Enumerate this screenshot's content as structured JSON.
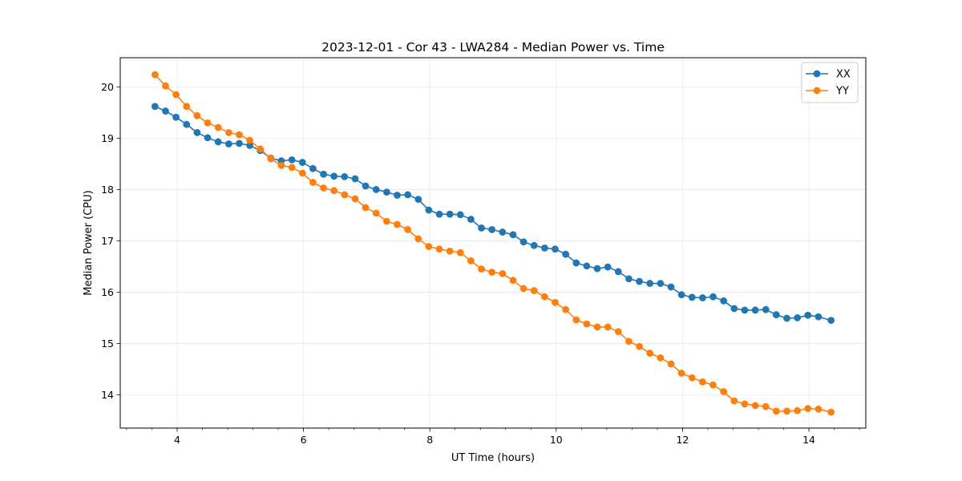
{
  "chart_data": {
    "type": "line",
    "title": "2023-12-01 - Cor 43 - LWA284 - Median Power vs. Time",
    "xlabel": "UT Time (hours)",
    "ylabel": "Median Power (CPU)",
    "xlim": [
      3.1,
      14.9
    ],
    "ylim": [
      13.35,
      20.57
    ],
    "x_ticks": [
      4,
      6,
      8,
      10,
      12,
      14
    ],
    "x_tick_labels": [
      "4",
      "6",
      "8",
      "10",
      "12",
      "14"
    ],
    "x_minor_step": 0.4,
    "y_ticks": [
      14,
      15,
      16,
      17,
      18,
      19,
      20
    ],
    "y_tick_labels": [
      "14",
      "15",
      "16",
      "17",
      "18",
      "19",
      "20"
    ],
    "grid": true,
    "legend_position": "top-right",
    "x": [
      3.65,
      3.817,
      3.983,
      4.15,
      4.317,
      4.483,
      4.65,
      4.817,
      4.983,
      5.15,
      5.317,
      5.483,
      5.65,
      5.817,
      5.983,
      6.15,
      6.317,
      6.483,
      6.65,
      6.817,
      6.983,
      7.15,
      7.317,
      7.483,
      7.65,
      7.817,
      7.983,
      8.15,
      8.317,
      8.483,
      8.65,
      8.817,
      8.983,
      9.15,
      9.317,
      9.483,
      9.65,
      9.817,
      9.983,
      10.15,
      10.317,
      10.483,
      10.65,
      10.817,
      10.983,
      11.15,
      11.317,
      11.483,
      11.65,
      11.817,
      11.983,
      12.15,
      12.317,
      12.483,
      12.65,
      12.817,
      12.983,
      13.15,
      13.317,
      13.483,
      13.65,
      13.817,
      13.983,
      14.15,
      14.35
    ],
    "series": [
      {
        "name": "XX",
        "color": "#1f77b4",
        "values": [
          19.62,
          19.53,
          19.41,
          19.27,
          19.11,
          19.01,
          18.93,
          18.89,
          18.9,
          18.86,
          18.76,
          18.61,
          18.56,
          18.58,
          18.53,
          18.41,
          18.3,
          18.26,
          18.25,
          18.21,
          18.07,
          18.0,
          17.95,
          17.89,
          17.9,
          17.81,
          17.6,
          17.52,
          17.52,
          17.51,
          17.42,
          17.25,
          17.22,
          17.17,
          17.12,
          16.98,
          16.91,
          16.86,
          16.84,
          16.74,
          16.57,
          16.51,
          16.46,
          16.49,
          16.4,
          16.26,
          16.21,
          16.17,
          16.17,
          16.1,
          15.95,
          15.9,
          15.89,
          15.91,
          15.83,
          15.68,
          15.65,
          15.65,
          15.66,
          15.56,
          15.49,
          15.5,
          15.55,
          15.52,
          15.45
        ]
      },
      {
        "name": "YY",
        "color": "#ff7f0e",
        "values": [
          20.24,
          20.02,
          19.85,
          19.62,
          19.44,
          19.3,
          19.21,
          19.11,
          19.07,
          18.96,
          18.79,
          18.6,
          18.47,
          18.43,
          18.32,
          18.14,
          18.03,
          17.98,
          17.9,
          17.82,
          17.65,
          17.54,
          17.38,
          17.32,
          17.22,
          17.04,
          16.89,
          16.84,
          16.8,
          16.77,
          16.61,
          16.45,
          16.39,
          16.36,
          16.23,
          16.07,
          16.03,
          15.91,
          15.8,
          15.66,
          15.46,
          15.38,
          15.32,
          15.32,
          15.23,
          15.04,
          14.94,
          14.81,
          14.72,
          14.6,
          14.42,
          14.33,
          14.25,
          14.19,
          14.06,
          13.88,
          13.82,
          13.79,
          13.77,
          13.68,
          13.68,
          13.69,
          13.73,
          13.72,
          13.66
        ]
      }
    ]
  }
}
